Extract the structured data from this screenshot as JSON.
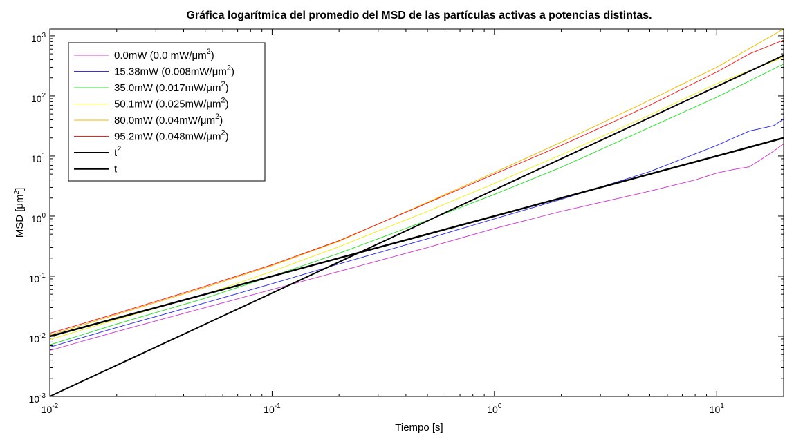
{
  "chart_data": {
    "type": "line",
    "title": "Gráfica logarítmica del promedio del MSD de las partículas activas a potencias distintas.",
    "xlabel": "Tiempo [s]",
    "ylabel": "MSD [μm²]",
    "xscale": "log",
    "yscale": "log",
    "xlim": [
      0.01,
      20
    ],
    "ylim": [
      0.001,
      1300
    ],
    "x_ticks": [
      {
        "value": 0.01,
        "base": "10",
        "exp": "-2"
      },
      {
        "value": 0.1,
        "base": "10",
        "exp": "-1"
      },
      {
        "value": 1,
        "base": "10",
        "exp": "0"
      },
      {
        "value": 10,
        "base": "10",
        "exp": "1"
      }
    ],
    "y_ticks": [
      {
        "value": 0.001,
        "base": "10",
        "exp": "-3"
      },
      {
        "value": 0.01,
        "base": "10",
        "exp": "-2"
      },
      {
        "value": 0.1,
        "base": "10",
        "exp": "-1"
      },
      {
        "value": 1,
        "base": "10",
        "exp": "0"
      },
      {
        "value": 10,
        "base": "10",
        "exp": "1"
      },
      {
        "value": 100,
        "base": "10",
        "exp": "2"
      },
      {
        "value": 1000,
        "base": "10",
        "exp": "3"
      }
    ],
    "grid": false,
    "legend_position": "top-left",
    "series": [
      {
        "name": "0.0mW (0.0 mW/μm²)",
        "label_main": "0.0mW (0.0 mW/μm",
        "label_sup": "2",
        "label_tail": ")",
        "color": "#cc44cc",
        "width": 1,
        "x": [
          0.01,
          0.02,
          0.05,
          0.1,
          0.2,
          0.5,
          1,
          2,
          5,
          8,
          10,
          12,
          14,
          16,
          18,
          20
        ],
        "y": [
          0.0058,
          0.012,
          0.03,
          0.06,
          0.12,
          0.3,
          0.62,
          1.2,
          2.6,
          4,
          5.2,
          6,
          6.6,
          9,
          12,
          16
        ]
      },
      {
        "name": "15.38mW (0.008mW/μm²)",
        "label_main": "15.38mW (0.008mW/μm",
        "label_sup": "2",
        "label_tail": ")",
        "color": "#3333dd",
        "width": 1,
        "x": [
          0.01,
          0.02,
          0.05,
          0.1,
          0.2,
          0.5,
          1,
          2,
          5,
          10,
          14,
          18,
          20
        ],
        "y": [
          0.0066,
          0.014,
          0.036,
          0.075,
          0.16,
          0.42,
          0.9,
          1.9,
          5.5,
          15,
          26,
          32,
          41
        ]
      },
      {
        "name": "35.0mW (0.017mW/μm²)",
        "label_main": "35.0mW (0.017mW/μm",
        "label_sup": "2",
        "label_tail": ")",
        "color": "#33dd33",
        "width": 1,
        "x": [
          0.01,
          0.02,
          0.05,
          0.1,
          0.2,
          0.5,
          1,
          2,
          5,
          10,
          20
        ],
        "y": [
          0.0072,
          0.016,
          0.043,
          0.1,
          0.24,
          0.85,
          2.3,
          6.5,
          30,
          95,
          340
        ]
      },
      {
        "name": "50.1mW (0.025mW/μm²)",
        "label_main": "50.1mW (0.025mW/μm",
        "label_sup": "2",
        "label_tail": ")",
        "color": "#eeee22",
        "width": 1,
        "x": [
          0.01,
          0.02,
          0.05,
          0.1,
          0.2,
          0.5,
          1,
          2,
          5,
          10,
          20
        ],
        "y": [
          0.0088,
          0.019,
          0.05,
          0.12,
          0.31,
          1.2,
          3.5,
          10.5,
          48,
          160,
          440
        ]
      },
      {
        "name": "80.0mW (0.04mW/μm²)",
        "label_main": "80.0mW (0.04mW/μm",
        "label_sup": "2",
        "label_tail": ")",
        "color": "#eebb00",
        "width": 1,
        "x": [
          0.01,
          0.02,
          0.05,
          0.1,
          0.2,
          0.5,
          1,
          2,
          5,
          10,
          20
        ],
        "y": [
          0.0105,
          0.023,
          0.065,
          0.15,
          0.38,
          1.7,
          5.3,
          17,
          85,
          300,
          1300
        ]
      },
      {
        "name": "95.2mW (0.048mW/μm²)",
        "label_main": "95.2mW (0.048mW/μm",
        "label_sup": "2",
        "label_tail": ")",
        "color": "#ee2222",
        "width": 1,
        "x": [
          0.01,
          0.02,
          0.05,
          0.1,
          0.2,
          0.5,
          1,
          2,
          5,
          10,
          14,
          20
        ],
        "y": [
          0.0112,
          0.024,
          0.068,
          0.155,
          0.39,
          1.65,
          5,
          15,
          70,
          250,
          500,
          850
        ]
      },
      {
        "name": "t²",
        "label_main": "t",
        "label_sup": "2",
        "label_tail": "",
        "color": "#000000",
        "width": 2,
        "x": [
          0.01,
          36.06
        ],
        "y": [
          0.001,
          1300
        ]
      },
      {
        "name": "t",
        "label_main": "t",
        "label_sup": "",
        "label_tail": "",
        "color": "#000000",
        "width": 2.5,
        "x": [
          0.01,
          20
        ],
        "y": [
          0.01,
          20
        ]
      }
    ]
  }
}
